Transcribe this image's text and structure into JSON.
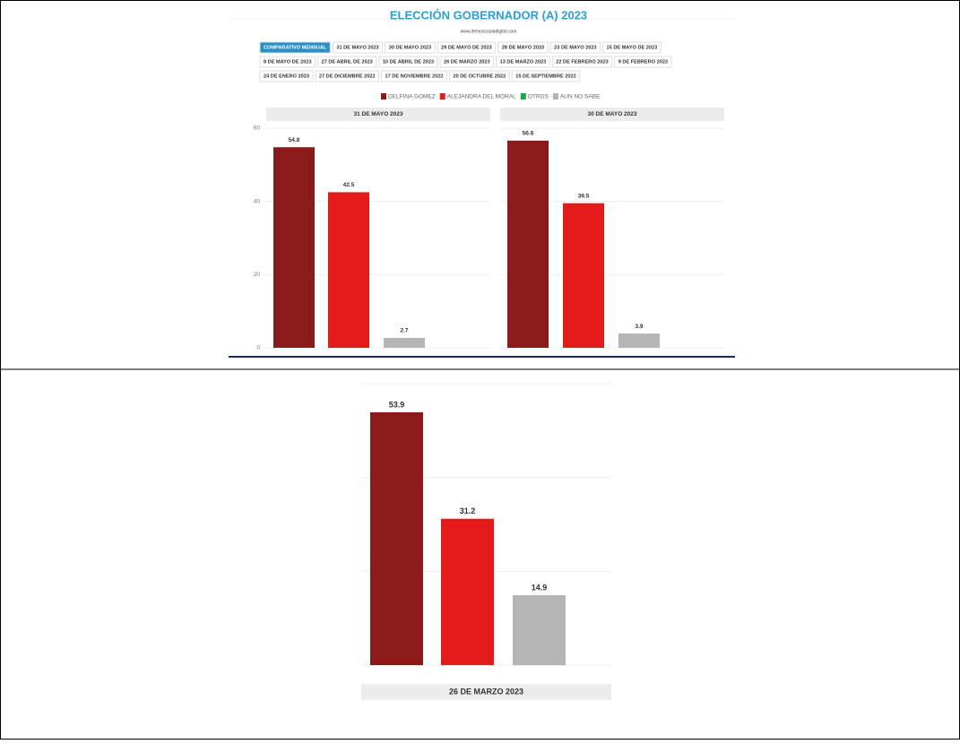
{
  "title": "ELECCIÓN GOBERNADOR (A) 2023",
  "url": "www.demoscopiadigital.com",
  "tabs": [
    [
      "COMPARATIVO MENSUAL",
      "31 DE MAYO 2023",
      "30 DE MAYO 2023",
      "29 DE MAYO DE 2023",
      "28 DE MAYO 2023",
      "23 DE MAYO 2023",
      "15 DE MAYO DE 2023"
    ],
    [
      "8 DE MAYO DE 2023",
      "27 DE ABRIL DE 2023",
      "10 DE ABRIL DE 2023",
      "26 DE MARZO 2023",
      "13 DE MARZO 2023",
      "22 DE FEBRERO 2023",
      "9 DE FEBRERO 2023"
    ],
    [
      "24 DE ENERO 2023",
      "27 DE DICIEMBRE 2022",
      "17 DE NOVIEMBRE 2022",
      "20 DE OCTUBRE 2022",
      "15 DE SEPTIEMBRE 2022"
    ]
  ],
  "legend": [
    {
      "name": "DELFINA GOMEZ",
      "color": "#8b1a1a"
    },
    {
      "name": "ALEJANDRA DEL MORAL",
      "color": "#e31b1b"
    },
    {
      "name": "OTROS",
      "color": "#1aa84f"
    },
    {
      "name": "AUN NO SABE",
      "color": "#b5b5b5"
    }
  ],
  "chart_data": [
    {
      "type": "bar",
      "title": "31 DE MAYO 2023",
      "categories": [
        null,
        null,
        null
      ],
      "values": [
        54.8,
        42.5,
        2.7
      ],
      "colors": [
        "#8b1a1a",
        "#e31b1b",
        "#b5b5b5"
      ],
      "ylim": [
        0,
        60
      ],
      "yticks": [
        0,
        20,
        40,
        60
      ],
      "grid": true
    },
    {
      "type": "bar",
      "title": "30 DE MAYO 2023",
      "categories": [
        null,
        null,
        null
      ],
      "values": [
        56.6,
        39.5,
        3.9
      ],
      "colors": [
        "#8b1a1a",
        "#e31b1b",
        "#b5b5b5"
      ],
      "ylim": [
        0,
        60
      ],
      "grid": true
    },
    {
      "type": "bar",
      "title": "26 DE MARZO 2023",
      "categories": [
        null,
        null,
        null
      ],
      "values": [
        53.9,
        31.2,
        14.9
      ],
      "colors": [
        "#8b1a1a",
        "#e31b1b",
        "#b5b5b5"
      ],
      "ylim": [
        0,
        60
      ],
      "grid": true
    }
  ]
}
